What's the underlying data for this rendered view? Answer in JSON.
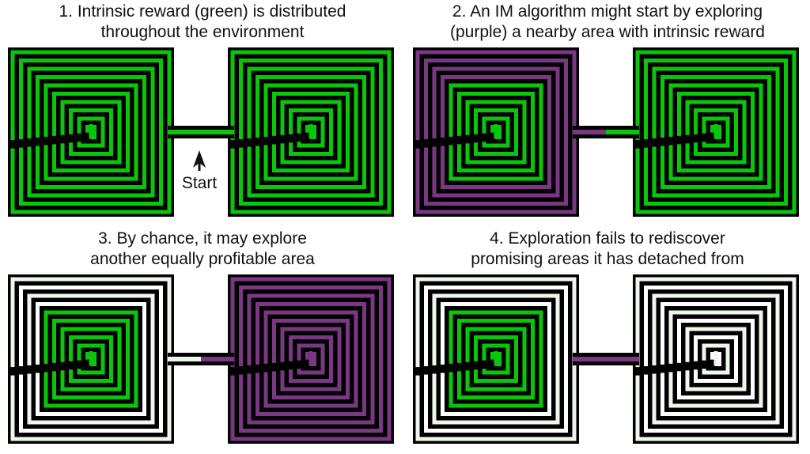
{
  "colors": {
    "wall": "#000000",
    "green": "#0ac60a",
    "purple": "#7b3784",
    "pale": "#eef7ea",
    "white": "#ffffff"
  },
  "panels": [
    {
      "id": "panel-1",
      "caption": [
        "1. Intrinsic reward (green) is distributed",
        "throughout the environment"
      ],
      "left_maze": "green",
      "right_maze": "green",
      "corridor_left": "green",
      "corridor_right": "green",
      "start_label": "Start"
    },
    {
      "id": "panel-2",
      "caption": [
        "2. An IM algorithm might start by exploring",
        "(purple) a nearby area with intrinsic reward"
      ],
      "left_maze": "purple-outer",
      "right_maze": "green",
      "corridor_left": "purple",
      "corridor_right": "green",
      "start_label": ""
    },
    {
      "id": "panel-3",
      "caption": [
        "3. By chance, it may explore",
        "another equally profitable area"
      ],
      "left_maze": "pale-outer",
      "right_maze": "purple",
      "corridor_left": "pale",
      "corridor_right": "purple",
      "start_label": ""
    },
    {
      "id": "panel-4",
      "caption": [
        "4. Exploration fails to rediscover",
        "promising areas it has detached from"
      ],
      "left_maze": "pale-outer",
      "right_maze": "pale",
      "corridor_left": "purple",
      "corridor_right": "purple",
      "start_label": ""
    }
  ]
}
